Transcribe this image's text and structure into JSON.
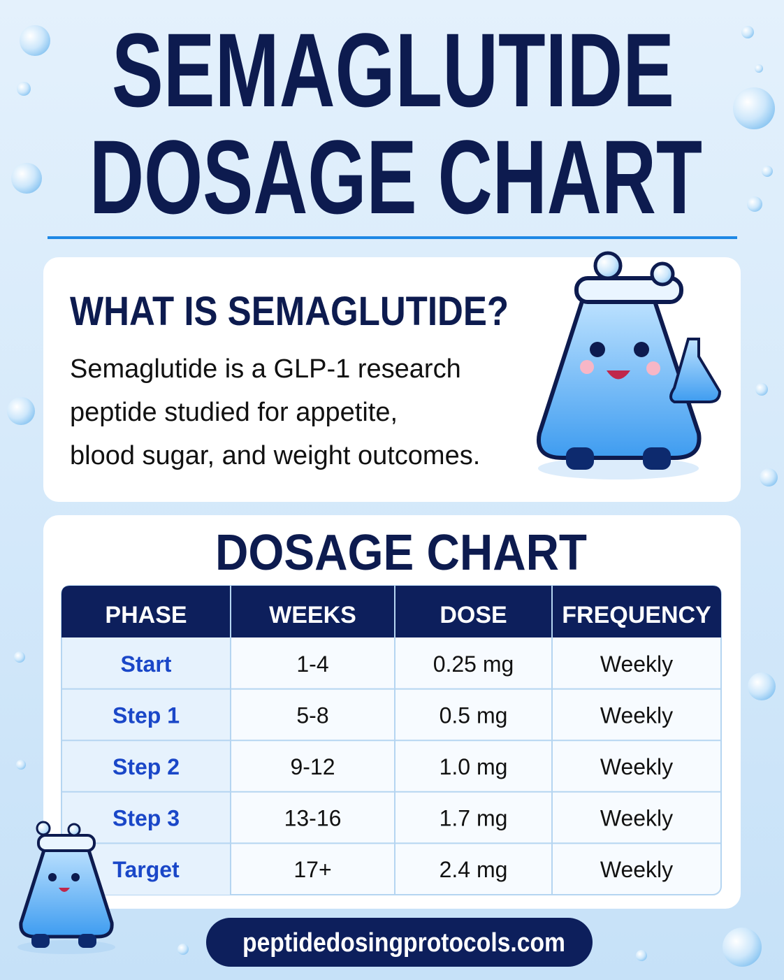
{
  "header": {
    "title_lines": [
      "SEMAGLUTIDE",
      "DOSAGE CHART"
    ]
  },
  "intro": {
    "heading": "WHAT IS SEMAGLUTIDE?",
    "text_lines": [
      "Semaglutide is a GLP-1 research",
      "peptide studied for appetite,",
      "blood sugar, and weight outcomes."
    ]
  },
  "table": {
    "title": "DOSAGE CHART",
    "headers": [
      "PHASE",
      "WEEKS",
      "DOSE",
      "FREQUENCY"
    ],
    "rows": [
      [
        "Start",
        "1-4",
        "0.25 mg",
        "Weekly"
      ],
      [
        "Step 1",
        "5-8",
        "0.5 mg",
        "Weekly"
      ],
      [
        "Step 2",
        "9-12",
        "1.0 mg",
        "Weekly"
      ],
      [
        "Step 3",
        "13-16",
        "1.7 mg",
        "Weekly"
      ],
      [
        "Target",
        "17+",
        "2.4 mg",
        "Weekly"
      ]
    ]
  },
  "footer": {
    "url": "peptidedosingprotocols.com"
  }
}
